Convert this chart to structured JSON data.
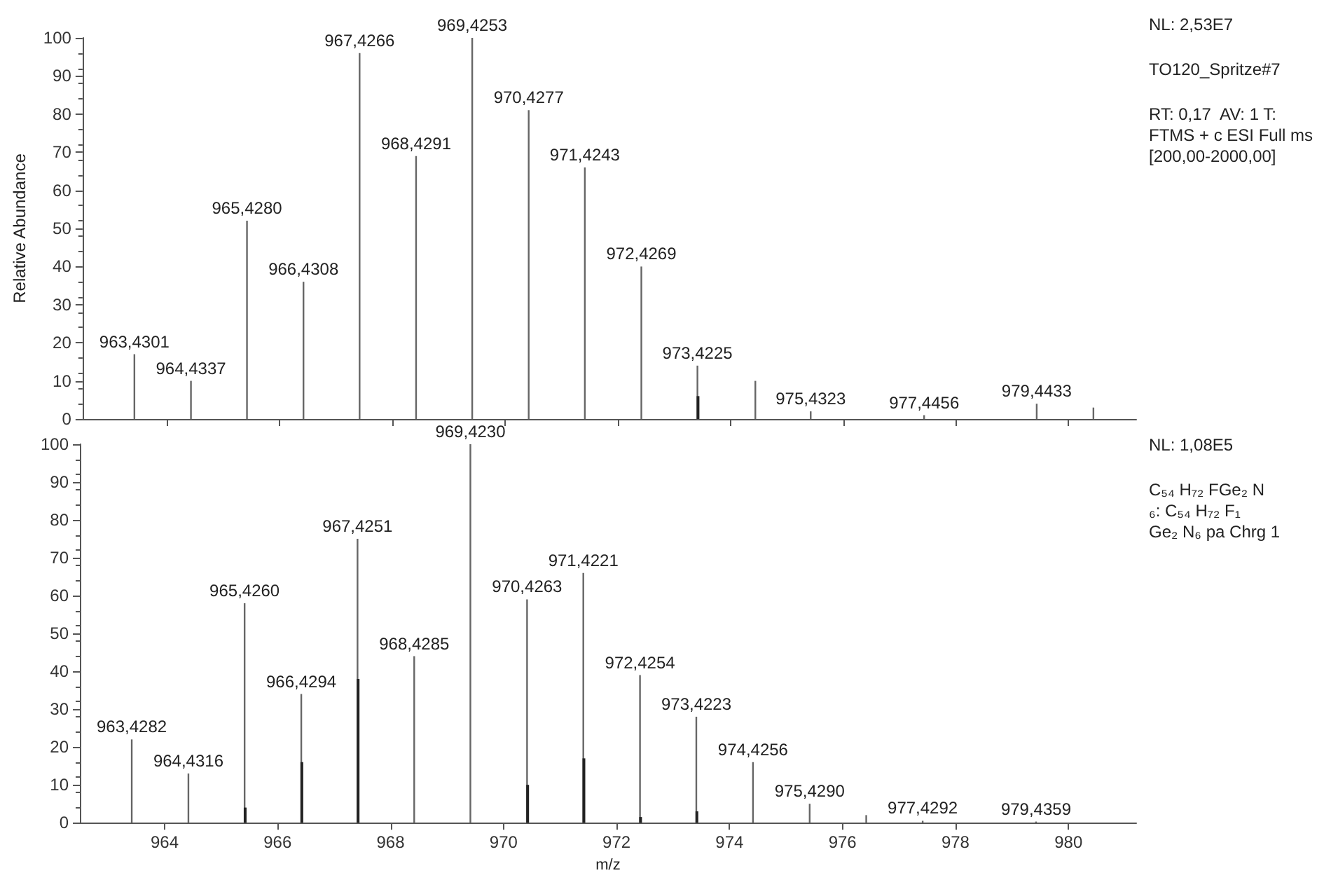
{
  "chart_data": [
    {
      "type": "bar",
      "ylabel": "Relative Abundance",
      "xlim": [
        962.5,
        981.2
      ],
      "xticks": [
        964,
        966,
        968,
        970,
        972,
        974,
        976,
        978,
        980
      ],
      "ylim": [
        0,
        100
      ],
      "yticks": [
        0,
        10,
        20,
        30,
        40,
        50,
        60,
        70,
        80,
        90,
        100
      ],
      "tick_labels": "y",
      "grid": false,
      "series": [
        {
          "color": "#666666",
          "x": [
            963.4301,
            964.4337,
            965.428,
            966.4308,
            967.4266,
            968.4291,
            969.4253,
            970.4277,
            971.4243,
            972.4269,
            973.4225,
            974.45,
            975.4323,
            977.4456,
            979.4433,
            980.45
          ],
          "values": [
            17,
            10,
            52,
            36,
            96,
            69,
            100,
            81,
            66,
            40,
            14,
            10,
            2,
            1,
            4,
            3
          ],
          "value_labels": [
            "963,4301",
            "964,4337",
            "965,4280",
            "966,4308",
            "967,4266",
            "968,4291",
            "969,4253",
            "970,4277",
            "971,4243",
            "972,4269",
            "973,4225",
            null,
            "975,4323",
            "977,4456",
            "979,4433",
            null
          ]
        },
        {
          "color": "#222222",
          "x": [
            973.4225
          ],
          "values": [
            6
          ]
        }
      ],
      "annotations": [
        "NL: 2,53E7",
        "TO120_Spritze#7",
        "RT: 0,17  AV: 1 T: FTMS + c ESI Full ms [200,00-2000,00]"
      ]
    },
    {
      "type": "bar",
      "xlabel": "m/z",
      "xlim": [
        962.5,
        981.2
      ],
      "xticks": [
        964,
        966,
        968,
        970,
        972,
        974,
        976,
        978,
        980
      ],
      "ylim": [
        0,
        100
      ],
      "yticks": [
        0,
        10,
        20,
        30,
        40,
        50,
        60,
        70,
        80,
        90,
        100
      ],
      "grid": false,
      "series": [
        {
          "color": "#666666",
          "x": [
            963.4282,
            964.4316,
            965.426,
            966.4294,
            967.4251,
            968.4285,
            969.423,
            970.4263,
            971.4221,
            972.4254,
            973.4223,
            974.4256,
            975.429,
            976.43,
            977.4292,
            979.4359
          ],
          "values": [
            22,
            13,
            58,
            34,
            75,
            44,
            100,
            59,
            66,
            39,
            28,
            16,
            5,
            2,
            0.5,
            0.3
          ],
          "value_labels": [
            "963,4282",
            "964,4316",
            "965,4260",
            "966,4294",
            "967,4251",
            "968,4285",
            "969,4230",
            "970,4263",
            "971,4221",
            "972,4254",
            "973,4223",
            "974,4256",
            "975,4290",
            null,
            "977,4292",
            "979,4359"
          ]
        },
        {
          "color": "#222222",
          "x": [
            965.426,
            966.4294,
            967.4251,
            970.4263,
            971.4221,
            972.4254,
            973.4223
          ],
          "values": [
            4,
            16,
            38,
            10,
            17,
            1.5,
            3
          ]
        }
      ],
      "annotations": [
        "NL: 1,08E5",
        "C₅₄ H₇₂ FGe₂ N₆: C₅₄ H₇₂ F₁ Ge₂ N₆ pa Chrg 1"
      ]
    }
  ]
}
